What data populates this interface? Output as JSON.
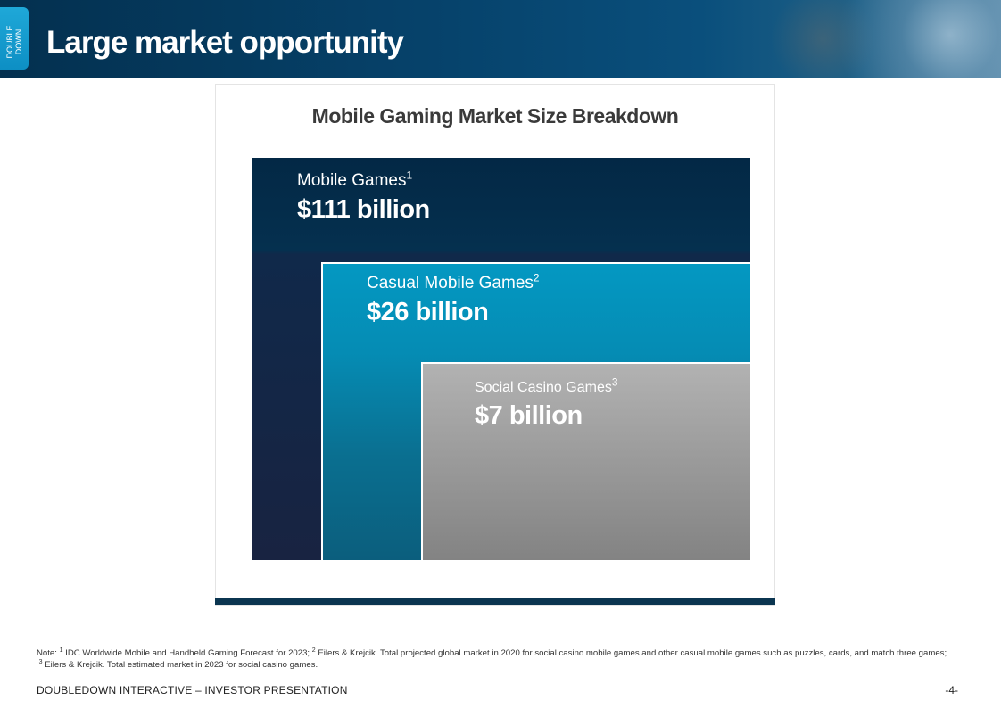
{
  "header": {
    "logo_line1": "DOUBLE",
    "logo_line2": "DOWN",
    "title": "Large market opportunity"
  },
  "chart_data": {
    "type": "nested-area",
    "title": "Mobile Gaming Market Size Breakdown",
    "unit": "billion USD",
    "segments": [
      {
        "name": "Mobile Games",
        "footnote": "1",
        "value": 111,
        "value_label": "$111 billion",
        "color": "#05304f"
      },
      {
        "name": "Casual Mobile Games",
        "footnote": "2",
        "value": 26,
        "value_label": "$26 billion",
        "color": "#0498c2"
      },
      {
        "name": "Social Casino Games",
        "footnote": "3",
        "value": 7,
        "value_label": "$7 billion",
        "color": "#a6a6a6"
      }
    ]
  },
  "notes": {
    "prefix": "Note: ",
    "n1_mark": "1",
    "n1_text": " IDC Worldwide Mobile and Handheld Gaming Forecast for 2023; ",
    "n2_mark": "2",
    "n2_text": " Eilers & Krejcik. Total projected global market in 2020 for social casino mobile games  and other casual mobile games such as puzzles, cards, and match three games;",
    "n3_mark": "3",
    "n3_text": " Eilers & Krejcik. Total estimated market in 2023 for social casino games."
  },
  "footer": {
    "left": "DOUBLEDOWN INTERACTIVE – INVESTOR PRESENTATION",
    "page": "-4-"
  }
}
